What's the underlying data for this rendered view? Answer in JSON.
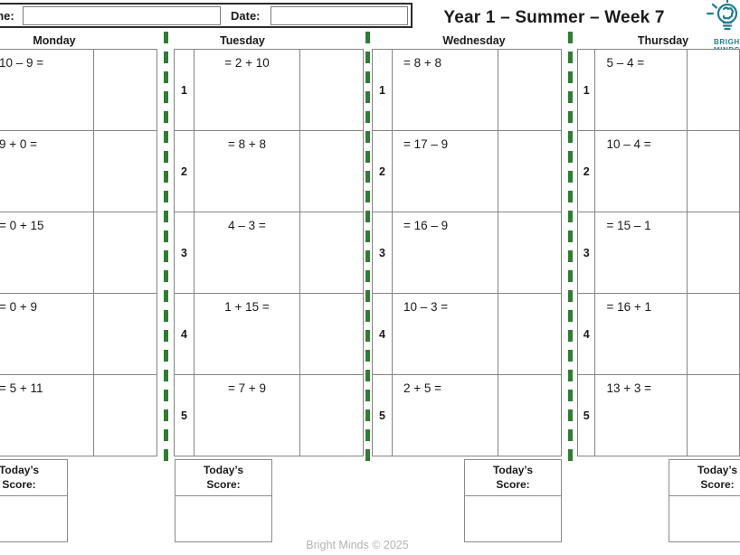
{
  "page": {
    "title": "Year 1 – Summer – Week 7",
    "footer": "Bright Minds © 2025"
  },
  "topbar": {
    "name_label": "Name:",
    "name_value": "",
    "date_label": "Date:",
    "date_value": ""
  },
  "logo": {
    "icon": "lightbulb-brain",
    "line1": "BRIGHT",
    "line2": "MINDS"
  },
  "score_box": {
    "label": "Today’s Score:"
  },
  "row_numbers": [
    "1",
    "2",
    "3",
    "4",
    "5"
  ],
  "days": [
    {
      "label": "Monday",
      "align": "left",
      "problems": [
        "10 – 9 =",
        "9 + 0 =",
        "= 0 + 15",
        "= 0 + 9",
        "= 5 + 11"
      ]
    },
    {
      "label": "Tuesday",
      "align": "center",
      "problems": [
        "= 2 + 10",
        "= 8 + 8",
        "4 – 3 =",
        "1 + 15 =",
        "= 7 + 9"
      ]
    },
    {
      "label": "Wednesday",
      "align": "left",
      "problems": [
        "= 8 + 8",
        "= 17 – 9",
        "= 16 – 9",
        "10 – 3 =",
        "2 + 5 ="
      ]
    },
    {
      "label": "Thursday",
      "align": "left",
      "problems": [
        "5 – 4 =",
        "10 – 4 =",
        "= 15 – 1",
        "= 16 + 1",
        "13 + 3 ="
      ]
    }
  ],
  "colors": {
    "divider_green": "#2e7d32",
    "brand_teal": "#1d7f8e",
    "table_border_gray": "#848484",
    "footer_gray": "#b3b3b3"
  }
}
